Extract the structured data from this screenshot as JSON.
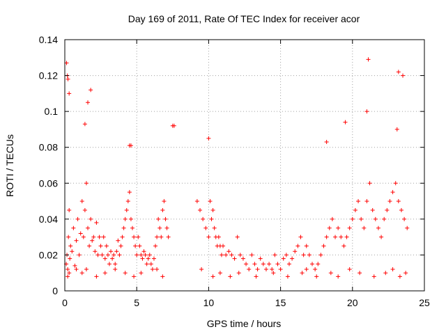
{
  "chart_data": {
    "type": "scatter",
    "title": "Day 169 of 2011, Rate Of TEC Index for receiver acor",
    "xlabel": "GPS time / hours",
    "ylabel": "ROTI / TECUs",
    "xlim": [
      0,
      25
    ],
    "ylim": [
      0,
      0.14
    ],
    "xticks": [
      "0",
      "5",
      "10",
      "15",
      "20",
      "25"
    ],
    "yticks": [
      "0",
      "0.02",
      "0.04",
      "0.06",
      "0.08",
      "0.1",
      "0.12",
      "0.14"
    ],
    "grid": true,
    "marker": "+",
    "color": "#ff0000",
    "series": [
      {
        "x": [
          0.1,
          0.15,
          0.2,
          0.25,
          0.3,
          0.35,
          0.4,
          0.5,
          0.6,
          0.7,
          0.8,
          0.9,
          1.0,
          1.1,
          1.2,
          1.3,
          1.4,
          1.5,
          1.6,
          1.7,
          1.8,
          1.9,
          2.0,
          2.1,
          2.2,
          2.3,
          2.4,
          2.5,
          2.6,
          2.7,
          2.8,
          2.9,
          3.0,
          3.1,
          3.2,
          3.3,
          3.4,
          3.5,
          3.6,
          3.7,
          3.8,
          3.9,
          4.0,
          4.1,
          4.2,
          4.3,
          4.4,
          4.5,
          4.6,
          4.7,
          4.8,
          4.9,
          5.0,
          5.1,
          5.2,
          5.3,
          5.4,
          5.5,
          5.6,
          5.7,
          5.8,
          5.9,
          6.0,
          6.1,
          6.2,
          6.3,
          6.4,
          6.5,
          6.6,
          6.7,
          6.8,
          6.9,
          7.0,
          7.1,
          7.2,
          7.6,
          9.2,
          9.4,
          9.6,
          9.8,
          10.0,
          10.1,
          10.2,
          10.3,
          10.4,
          10.5,
          10.6,
          10.7,
          10.8,
          10.9,
          11.0,
          11.2,
          11.4,
          11.6,
          11.8,
          12.0,
          12.2,
          12.4,
          12.6,
          12.8,
          13.0,
          13.2,
          13.4,
          13.6,
          13.8,
          14.0,
          14.2,
          14.4,
          14.6,
          14.8,
          15.0,
          15.2,
          15.4,
          15.6,
          15.8,
          16.0,
          16.2,
          16.4,
          16.6,
          16.8,
          17.0,
          17.2,
          17.4,
          17.6,
          17.8,
          18.0,
          18.2,
          18.4,
          18.6,
          18.8,
          19.0,
          19.2,
          19.4,
          19.6,
          19.8,
          20.0,
          20.2,
          20.4,
          20.6,
          20.8,
          21.0,
          21.2,
          21.4,
          21.6,
          21.8,
          22.0,
          22.2,
          22.4,
          22.6,
          22.8,
          23.0,
          23.2,
          23.4,
          23.6,
          23.8,
          0.12,
          0.18,
          0.22,
          0.3,
          1.4,
          1.6,
          1.8,
          4.5,
          4.6,
          7.5,
          10.0,
          18.2,
          19.5,
          21.0,
          21.1,
          23.1,
          23.2,
          23.5,
          0.2,
          0.3,
          0.8,
          1.2,
          1.5,
          2.2,
          2.8,
          3.5,
          4.2,
          4.8,
          5.3,
          6.4,
          6.8,
          9.5,
          10.3,
          10.8,
          11.5,
          12.1,
          13.3,
          14.5,
          15.5,
          16.5,
          16.8,
          17.5,
          18.5,
          19.0,
          19.8,
          20.5,
          21.5,
          22.3,
          22.8,
          23.3,
          23.7
        ],
        "y": [
          0.015,
          0.02,
          0.012,
          0.03,
          0.045,
          0.018,
          0.025,
          0.022,
          0.035,
          0.014,
          0.028,
          0.04,
          0.02,
          0.032,
          0.05,
          0.03,
          0.045,
          0.06,
          0.035,
          0.025,
          0.04,
          0.028,
          0.03,
          0.022,
          0.038,
          0.02,
          0.03,
          0.025,
          0.02,
          0.03,
          0.018,
          0.025,
          0.02,
          0.015,
          0.022,
          0.018,
          0.02,
          0.015,
          0.022,
          0.028,
          0.02,
          0.025,
          0.03,
          0.035,
          0.04,
          0.045,
          0.05,
          0.055,
          0.04,
          0.035,
          0.03,
          0.025,
          0.02,
          0.03,
          0.025,
          0.02,
          0.018,
          0.022,
          0.02,
          0.015,
          0.018,
          0.02,
          0.015,
          0.012,
          0.018,
          0.025,
          0.03,
          0.04,
          0.035,
          0.03,
          0.045,
          0.05,
          0.04,
          0.035,
          0.03,
          0.092,
          0.05,
          0.045,
          0.04,
          0.035,
          0.03,
          0.05,
          0.04,
          0.045,
          0.035,
          0.03,
          0.025,
          0.03,
          0.025,
          0.02,
          0.025,
          0.02,
          0.022,
          0.02,
          0.018,
          0.03,
          0.02,
          0.018,
          0.015,
          0.012,
          0.02,
          0.015,
          0.012,
          0.018,
          0.015,
          0.012,
          0.015,
          0.012,
          0.02,
          0.015,
          0.012,
          0.018,
          0.02,
          0.015,
          0.018,
          0.022,
          0.025,
          0.03,
          0.02,
          0.025,
          0.02,
          0.015,
          0.012,
          0.015,
          0.02,
          0.025,
          0.03,
          0.035,
          0.04,
          0.03,
          0.035,
          0.03,
          0.025,
          0.03,
          0.035,
          0.04,
          0.045,
          0.05,
          0.04,
          0.035,
          0.05,
          0.06,
          0.045,
          0.04,
          0.035,
          0.03,
          0.04,
          0.045,
          0.05,
          0.055,
          0.06,
          0.05,
          0.045,
          0.04,
          0.035,
          0.127,
          0.12,
          0.118,
          0.11,
          0.093,
          0.105,
          0.112,
          0.081,
          0.081,
          0.092,
          0.085,
          0.083,
          0.094,
          0.1,
          0.129,
          0.09,
          0.122,
          0.12,
          0.008,
          0.01,
          0.012,
          0.01,
          0.012,
          0.008,
          0.01,
          0.012,
          0.01,
          0.008,
          0.01,
          0.012,
          0.008,
          0.012,
          0.008,
          0.01,
          0.008,
          0.01,
          0.008,
          0.01,
          0.008,
          0.01,
          0.012,
          0.008,
          0.01,
          0.008,
          0.012,
          0.01,
          0.008,
          0.01,
          0.012,
          0.008,
          0.01
        ]
      }
    ]
  }
}
